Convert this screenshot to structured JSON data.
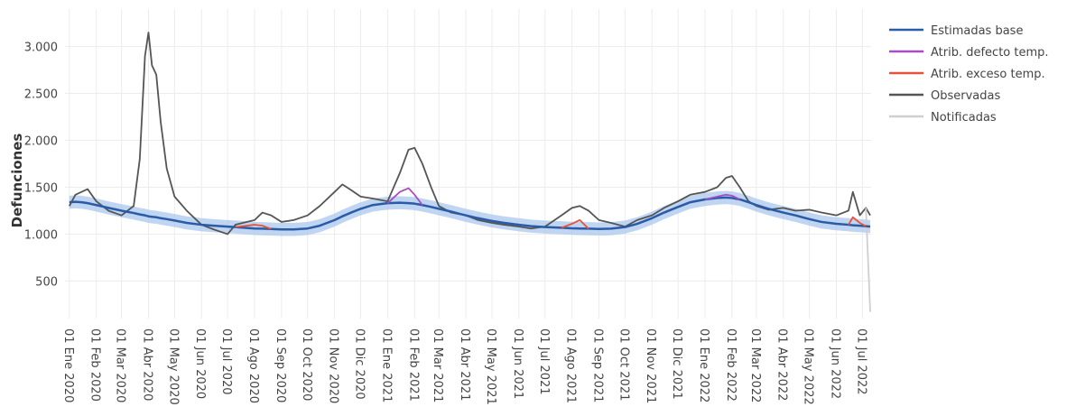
{
  "chart_data": {
    "type": "line",
    "y_label": "Defunciones",
    "x": [
      "2020-01-01",
      "2020-01-08",
      "2020-01-15",
      "2020-01-22",
      "2020-02-01",
      "2020-02-15",
      "2020-03-01",
      "2020-03-15",
      "2020-03-22",
      "2020-03-28",
      "2020-04-01",
      "2020-04-05",
      "2020-04-10",
      "2020-04-15",
      "2020-04-22",
      "2020-05-01",
      "2020-05-15",
      "2020-06-01",
      "2020-06-15",
      "2020-07-01",
      "2020-07-10",
      "2020-08-01",
      "2020-08-10",
      "2020-08-20",
      "2020-09-01",
      "2020-09-15",
      "2020-10-01",
      "2020-10-15",
      "2020-11-01",
      "2020-11-10",
      "2020-11-20",
      "2020-12-01",
      "2020-12-15",
      "2021-01-01",
      "2021-01-15",
      "2021-01-25",
      "2021-02-01",
      "2021-02-10",
      "2021-02-20",
      "2021-03-01",
      "2021-03-15",
      "2021-04-01",
      "2021-04-15",
      "2021-05-01",
      "2021-05-15",
      "2021-06-01",
      "2021-06-15",
      "2021-07-01",
      "2021-07-20",
      "2021-08-01",
      "2021-08-10",
      "2021-08-20",
      "2021-09-01",
      "2021-09-15",
      "2021-10-01",
      "2021-10-15",
      "2021-11-01",
      "2021-11-15",
      "2021-12-01",
      "2021-12-15",
      "2022-01-01",
      "2022-01-15",
      "2022-01-25",
      "2022-02-01",
      "2022-02-10",
      "2022-02-20",
      "2022-03-01",
      "2022-03-15",
      "2022-04-01",
      "2022-04-15",
      "2022-05-01",
      "2022-05-15",
      "2022-06-01",
      "2022-06-15",
      "2022-06-20",
      "2022-06-28",
      "2022-07-05",
      "2022-07-10"
    ],
    "xlim": [
      "2019-12-27",
      "2022-07-11"
    ],
    "xticks": [
      {
        "value": "2020-01-01",
        "label": "01 Ene 2020"
      },
      {
        "value": "2020-02-01",
        "label": "01 Feb 2020"
      },
      {
        "value": "2020-03-01",
        "label": "01 Mar 2020"
      },
      {
        "value": "2020-04-01",
        "label": "01 Abr 2020"
      },
      {
        "value": "2020-05-01",
        "label": "01 May 2020"
      },
      {
        "value": "2020-06-01",
        "label": "01 Jun 2020"
      },
      {
        "value": "2020-07-01",
        "label": "01 Jul 2020"
      },
      {
        "value": "2020-08-01",
        "label": "01 Ago 2020"
      },
      {
        "value": "2020-09-01",
        "label": "01 Sep 2020"
      },
      {
        "value": "2020-10-01",
        "label": "01 Oct 2020"
      },
      {
        "value": "2020-11-01",
        "label": "01 Nov 2020"
      },
      {
        "value": "2020-12-01",
        "label": "01 Dic 2020"
      },
      {
        "value": "2021-01-01",
        "label": "01 Ene 2021"
      },
      {
        "value": "2021-02-01",
        "label": "01 Feb 2021"
      },
      {
        "value": "2021-03-01",
        "label": "01 Mar 2021"
      },
      {
        "value": "2021-04-01",
        "label": "01 Abr 2021"
      },
      {
        "value": "2021-05-01",
        "label": "01 May 2021"
      },
      {
        "value": "2021-06-01",
        "label": "01 Jun 2021"
      },
      {
        "value": "2021-07-01",
        "label": "01 Jul 2021"
      },
      {
        "value": "2021-08-01",
        "label": "01 Ago 2021"
      },
      {
        "value": "2021-09-01",
        "label": "01 Sep 2021"
      },
      {
        "value": "2021-10-01",
        "label": "01 Oct 2021"
      },
      {
        "value": "2021-11-01",
        "label": "01 Nov 2021"
      },
      {
        "value": "2021-12-01",
        "label": "01 Dic 2021"
      },
      {
        "value": "2022-01-01",
        "label": "01 Ene 2022"
      },
      {
        "value": "2022-02-01",
        "label": "01 Feb 2022"
      },
      {
        "value": "2022-03-01",
        "label": "01 Mar 2022"
      },
      {
        "value": "2022-04-01",
        "label": "01 Abr 2022"
      },
      {
        "value": "2022-05-01",
        "label": "01 May 2022"
      },
      {
        "value": "2022-06-01",
        "label": "01 Jun 2022"
      },
      {
        "value": "2022-07-01",
        "label": "01 Jul 2022"
      }
    ],
    "ylim": [
      100,
      3400
    ],
    "yticks": [
      500,
      {
        "value": 1000,
        "label": "1.000"
      },
      {
        "value": 1500,
        "label": "1.500"
      },
      {
        "value": 2000,
        "label": "2.000"
      },
      {
        "value": 2500,
        "label": "2.500"
      },
      {
        "value": 3000,
        "label": "3.000"
      }
    ],
    "grid": true,
    "interval": {
      "color": "#a9c7ec",
      "lower": [
        1270,
        1275,
        1270,
        1260,
        1240,
        1210,
        1180,
        1155,
        1140,
        1130,
        1120,
        1115,
        1110,
        1100,
        1090,
        1075,
        1050,
        1030,
        1020,
        1010,
        1005,
        990,
        988,
        985,
        980,
        980,
        990,
        1020,
        1080,
        1120,
        1160,
        1200,
        1240,
        1260,
        1265,
        1260,
        1255,
        1240,
        1220,
        1200,
        1170,
        1130,
        1100,
        1070,
        1050,
        1030,
        1015,
        1005,
        998,
        992,
        990,
        988,
        985,
        988,
        1005,
        1040,
        1100,
        1160,
        1220,
        1270,
        1300,
        1315,
        1320,
        1315,
        1300,
        1270,
        1240,
        1200,
        1160,
        1130,
        1090,
        1060,
        1040,
        1030,
        1025,
        1020,
        1015,
        1010
      ],
      "upper": [
        1410,
        1415,
        1410,
        1400,
        1380,
        1350,
        1320,
        1295,
        1280,
        1270,
        1260,
        1255,
        1250,
        1240,
        1230,
        1215,
        1190,
        1170,
        1160,
        1150,
        1145,
        1130,
        1128,
        1125,
        1120,
        1120,
        1130,
        1160,
        1220,
        1260,
        1300,
        1340,
        1380,
        1400,
        1405,
        1400,
        1395,
        1380,
        1360,
        1340,
        1310,
        1270,
        1240,
        1210,
        1190,
        1170,
        1155,
        1145,
        1138,
        1132,
        1130,
        1128,
        1125,
        1128,
        1145,
        1180,
        1240,
        1300,
        1360,
        1410,
        1440,
        1455,
        1460,
        1455,
        1440,
        1410,
        1380,
        1340,
        1300,
        1270,
        1230,
        1200,
        1180,
        1170,
        1165,
        1160,
        1155,
        1150
      ]
    },
    "series": [
      {
        "name": "Estimadas base",
        "color": "#2a5ba6",
        "width": 2.5,
        "values": [
          1340,
          1345,
          1340,
          1330,
          1310,
          1280,
          1250,
          1225,
          1210,
          1200,
          1190,
          1185,
          1180,
          1170,
          1160,
          1145,
          1120,
          1100,
          1090,
          1080,
          1075,
          1060,
          1058,
          1055,
          1050,
          1050,
          1060,
          1090,
          1150,
          1190,
          1230,
          1270,
          1310,
          1330,
          1335,
          1330,
          1325,
          1310,
          1290,
          1270,
          1240,
          1200,
          1170,
          1140,
          1120,
          1100,
          1085,
          1075,
          1068,
          1062,
          1060,
          1058,
          1055,
          1058,
          1075,
          1110,
          1170,
          1230,
          1290,
          1340,
          1370,
          1385,
          1390,
          1385,
          1370,
          1340,
          1310,
          1270,
          1230,
          1200,
          1160,
          1130,
          1110,
          1100,
          1095,
          1090,
          1085,
          1080
        ]
      },
      {
        "name": "Atrib. defecto temp.",
        "color": "#a54fc4",
        "width": 1.8,
        "values": [
          null,
          null,
          null,
          null,
          null,
          null,
          null,
          null,
          null,
          null,
          null,
          null,
          null,
          null,
          null,
          null,
          null,
          null,
          null,
          null,
          null,
          null,
          null,
          null,
          null,
          null,
          null,
          null,
          null,
          null,
          null,
          null,
          null,
          1330,
          1450,
          1490,
          1420,
          1310,
          null,
          null,
          null,
          null,
          null,
          null,
          null,
          null,
          null,
          null,
          null,
          null,
          null,
          null,
          null,
          null,
          null,
          null,
          null,
          null,
          null,
          null,
          1370,
          1400,
          1420,
          1410,
          1370,
          null,
          null,
          null,
          null,
          null,
          null,
          null,
          null,
          null,
          null,
          null,
          null,
          null
        ]
      },
      {
        "name": "Atrib. exceso temp.",
        "color": "#e5533d",
        "width": 1.8,
        "values": [
          null,
          null,
          null,
          null,
          null,
          null,
          null,
          null,
          null,
          null,
          null,
          null,
          null,
          null,
          null,
          null,
          null,
          null,
          null,
          null,
          1075,
          1100,
          1090,
          1055,
          null,
          null,
          null,
          null,
          null,
          null,
          null,
          null,
          null,
          null,
          null,
          null,
          null,
          null,
          null,
          null,
          null,
          null,
          null,
          null,
          null,
          null,
          null,
          null,
          1068,
          1110,
          1150,
          1058,
          null,
          null,
          null,
          null,
          null,
          null,
          null,
          null,
          null,
          null,
          null,
          null,
          null,
          null,
          null,
          null,
          null,
          null,
          null,
          null,
          null,
          1100,
          1180,
          1120,
          1085,
          null
        ]
      },
      {
        "name": "Observadas",
        "color": "#555555",
        "width": 1.8,
        "values": [
          1300,
          1420,
          1450,
          1480,
          1350,
          1250,
          1200,
          1300,
          1800,
          2900,
          3150,
          2800,
          2700,
          2200,
          1700,
          1400,
          1250,
          1100,
          1050,
          1000,
          1100,
          1150,
          1230,
          1200,
          1130,
          1150,
          1200,
          1300,
          1450,
          1530,
          1470,
          1400,
          1380,
          1350,
          1650,
          1900,
          1920,
          1750,
          1500,
          1300,
          1230,
          1200,
          1150,
          1120,
          1100,
          1080,
          1060,
          1080,
          1200,
          1280,
          1300,
          1250,
          1150,
          1120,
          1080,
          1150,
          1200,
          1280,
          1350,
          1420,
          1450,
          1500,
          1600,
          1620,
          1500,
          1350,
          1300,
          1260,
          1280,
          1250,
          1260,
          1230,
          1200,
          1250,
          1450,
          1200,
          1280,
          1200
        ]
      },
      {
        "name": "Notificadas",
        "color": "#cfcfcf",
        "width": 1.8,
        "values": [
          null,
          null,
          null,
          null,
          null,
          null,
          null,
          null,
          null,
          null,
          null,
          null,
          null,
          null,
          null,
          null,
          null,
          null,
          null,
          null,
          null,
          null,
          null,
          null,
          null,
          null,
          null,
          null,
          null,
          null,
          null,
          null,
          null,
          null,
          null,
          null,
          null,
          null,
          null,
          null,
          null,
          null,
          null,
          null,
          null,
          null,
          null,
          null,
          null,
          null,
          null,
          null,
          null,
          null,
          null,
          null,
          null,
          null,
          null,
          null,
          null,
          null,
          null,
          null,
          null,
          null,
          null,
          null,
          null,
          null,
          null,
          null,
          null,
          null,
          null,
          null,
          1280,
          170
        ]
      }
    ],
    "draw_order": [
      3,
      4,
      0,
      1,
      2
    ]
  }
}
